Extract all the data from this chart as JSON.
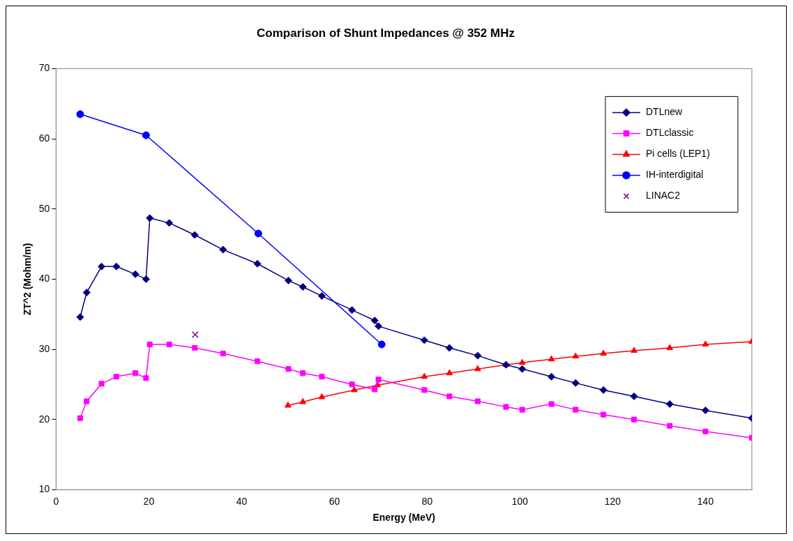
{
  "chart_data": {
    "type": "line",
    "title": "Comparison of Shunt Impedances @ 352 MHz",
    "xlabel": "Energy (MeV)",
    "ylabel": "ZT^2 (Mohm/m)",
    "xlim": [
      0,
      150
    ],
    "xticks": [
      0,
      20,
      40,
      60,
      80,
      100,
      120,
      140
    ],
    "ylim": [
      10,
      70
    ],
    "yticks": [
      10,
      20,
      30,
      40,
      50,
      60,
      70
    ],
    "grid": false,
    "legend": "top right",
    "line_style": "solid",
    "series": [
      {
        "name": "DTLnew",
        "color": "#000080",
        "marker": "diamond",
        "x": [
          5.2,
          6.6,
          9.8,
          13,
          17.1,
          19.4,
          20.2,
          24.4,
          29.9,
          36,
          43.4,
          50.1,
          53.2,
          57.3,
          63.8,
          68.7,
          69.5,
          79.4,
          84.8,
          90.9,
          97,
          100.5,
          106.8,
          112,
          118,
          124.6,
          132.3,
          140,
          150
        ],
        "values": [
          34.6,
          38.1,
          41.8,
          41.8,
          40.7,
          40,
          48.7,
          48,
          46.3,
          44.2,
          42.2,
          39.8,
          38.9,
          37.6,
          35.6,
          34.1,
          33.3,
          31.3,
          30.2,
          29.1,
          27.8,
          27.2,
          26.1,
          25.2,
          24.2,
          23.3,
          22.2,
          21.3,
          20.2
        ]
      },
      {
        "name": "DTLclassic",
        "color": "#ff00ff",
        "marker": "square",
        "x": [
          5.2,
          6.6,
          9.8,
          13,
          17.1,
          19.4,
          20.2,
          24.4,
          29.9,
          36,
          43.4,
          50.1,
          53.2,
          57.3,
          63.8,
          68.7,
          69.5,
          79.4,
          84.8,
          90.9,
          97,
          100.5,
          106.8,
          112,
          118,
          124.6,
          132.3,
          140,
          150
        ],
        "values": [
          20.2,
          22.6,
          25.1,
          26.1,
          26.6,
          25.9,
          30.7,
          30.7,
          30.2,
          29.4,
          28.3,
          27.2,
          26.6,
          26.1,
          25,
          24.3,
          25.7,
          24.2,
          23.3,
          22.6,
          21.8,
          21.4,
          22.2,
          21.4,
          20.7,
          20,
          19.1,
          18.3,
          17.4
        ]
      },
      {
        "name": "Pi cells (LEP1)",
        "color": "#ff0000",
        "marker": "triangle",
        "x": [
          50,
          53.2,
          57.3,
          64.3,
          69.3,
          79.4,
          84.8,
          90.9,
          97,
          100.5,
          106.8,
          112,
          118,
          124.6,
          132.3,
          140,
          150
        ],
        "values": [
          22,
          22.5,
          23.2,
          24.2,
          24.9,
          26.1,
          26.6,
          27.2,
          27.8,
          28.1,
          28.6,
          29,
          29.4,
          29.8,
          30.2,
          30.7,
          31.1
        ]
      },
      {
        "name": "IH-interdigital",
        "color": "#0000ff",
        "marker": "circle",
        "x": [
          5.2,
          19.4,
          43.6,
          70.2
        ],
        "values": [
          63.5,
          60.5,
          46.5,
          30.7
        ]
      },
      {
        "name": "LINAC2",
        "type": "scatter",
        "color": "#800080",
        "marker": "cross",
        "x": [
          30
        ],
        "values": [
          32.1
        ]
      }
    ]
  }
}
